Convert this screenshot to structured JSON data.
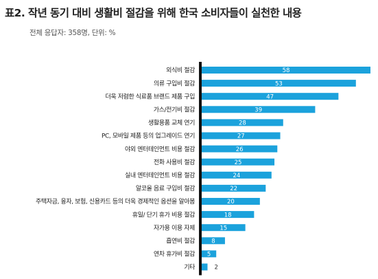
{
  "title": "표2. 작년 동기 대비 생활비 절감을 위해 한국 소비자들이 실천한 내용",
  "subtitle": "전체 응답자: 358명, 단위: %",
  "colors": {
    "bar": "#1ba2dc",
    "axis": "#111111",
    "value_inside": "#ffffff",
    "value_outside": "#333333"
  },
  "chart_data": {
    "type": "bar",
    "orientation": "horizontal",
    "title": "표2. 작년 동기 대비 생활비 절감을 위해 한국 소비자들이 실천한 내용",
    "subtitle": "전체 응답자: 358명, 단위: %",
    "xlabel": "",
    "ylabel": "",
    "grid": false,
    "legend": "none",
    "categories": [
      "외식비 절감",
      "의류 구입비 절감",
      "더욱 저렴한 식료품 브랜드 제품 구입",
      "가스/전기비 절감",
      "생활용품 교체 연기",
      "PC, 모바일 제품 등의 업그레이드 연기",
      "야외 엔터테인먼트 비용 절감",
      "전화 사용비 절감",
      "실내 엔터테인먼트 비용 절감",
      "알코올 음료 구입비 절감",
      "주택자금, 융자, 보험, 신용카드 등의 더욱 경제적인 옵션을 알아봄",
      "휴일/ 단기 휴가 비용 절감",
      "자가용 이용 자제",
      "흡연비 절감",
      "연차 휴가비 절감",
      "기타"
    ],
    "values": [
      58,
      53,
      47,
      39,
      28,
      27,
      26,
      25,
      24,
      22,
      20,
      18,
      15,
      8,
      5,
      2
    ],
    "xlim": [
      0,
      58
    ]
  }
}
